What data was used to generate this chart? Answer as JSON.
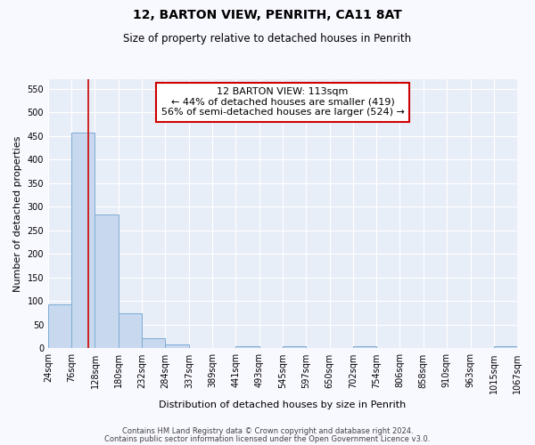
{
  "title": "12, BARTON VIEW, PENRITH, CA11 8AT",
  "subtitle": "Size of property relative to detached houses in Penrith",
  "xlabel": "Distribution of detached houses by size in Penrith",
  "ylabel": "Number of detached properties",
  "bin_edges": [
    24,
    76,
    128,
    180,
    232,
    284,
    337,
    389,
    441,
    493,
    545,
    597,
    650,
    702,
    754,
    806,
    858,
    910,
    963,
    1015,
    1067
  ],
  "bar_heights": [
    93,
    457,
    283,
    75,
    22,
    8,
    0,
    0,
    5,
    0,
    5,
    0,
    0,
    5,
    0,
    0,
    0,
    0,
    0,
    5
  ],
  "bar_color": "#c8d8ee",
  "bar_edge_color": "#7eadd4",
  "property_size": 113,
  "vline_color": "#cc0000",
  "ylim": [
    0,
    570
  ],
  "yticks": [
    0,
    50,
    100,
    150,
    200,
    250,
    300,
    350,
    400,
    450,
    500,
    550
  ],
  "annotation_text": "12 BARTON VIEW: 113sqm\n← 44% of detached houses are smaller (419)\n56% of semi-detached houses are larger (524) →",
  "annotation_box_facecolor": "#ffffff",
  "annotation_box_edgecolor": "#cc0000",
  "footer_line1": "Contains HM Land Registry data © Crown copyright and database right 2024.",
  "footer_line2": "Contains public sector information licensed under the Open Government Licence v3.0.",
  "fig_facecolor": "#f8f8ff",
  "ax_facecolor": "#e8eef8",
  "grid_color": "#ffffff",
  "title_fontsize": 10,
  "subtitle_fontsize": 8.5,
  "xlabel_fontsize": 8,
  "ylabel_fontsize": 8,
  "tick_fontsize": 7,
  "annotation_fontsize": 8,
  "footer_fontsize": 6
}
